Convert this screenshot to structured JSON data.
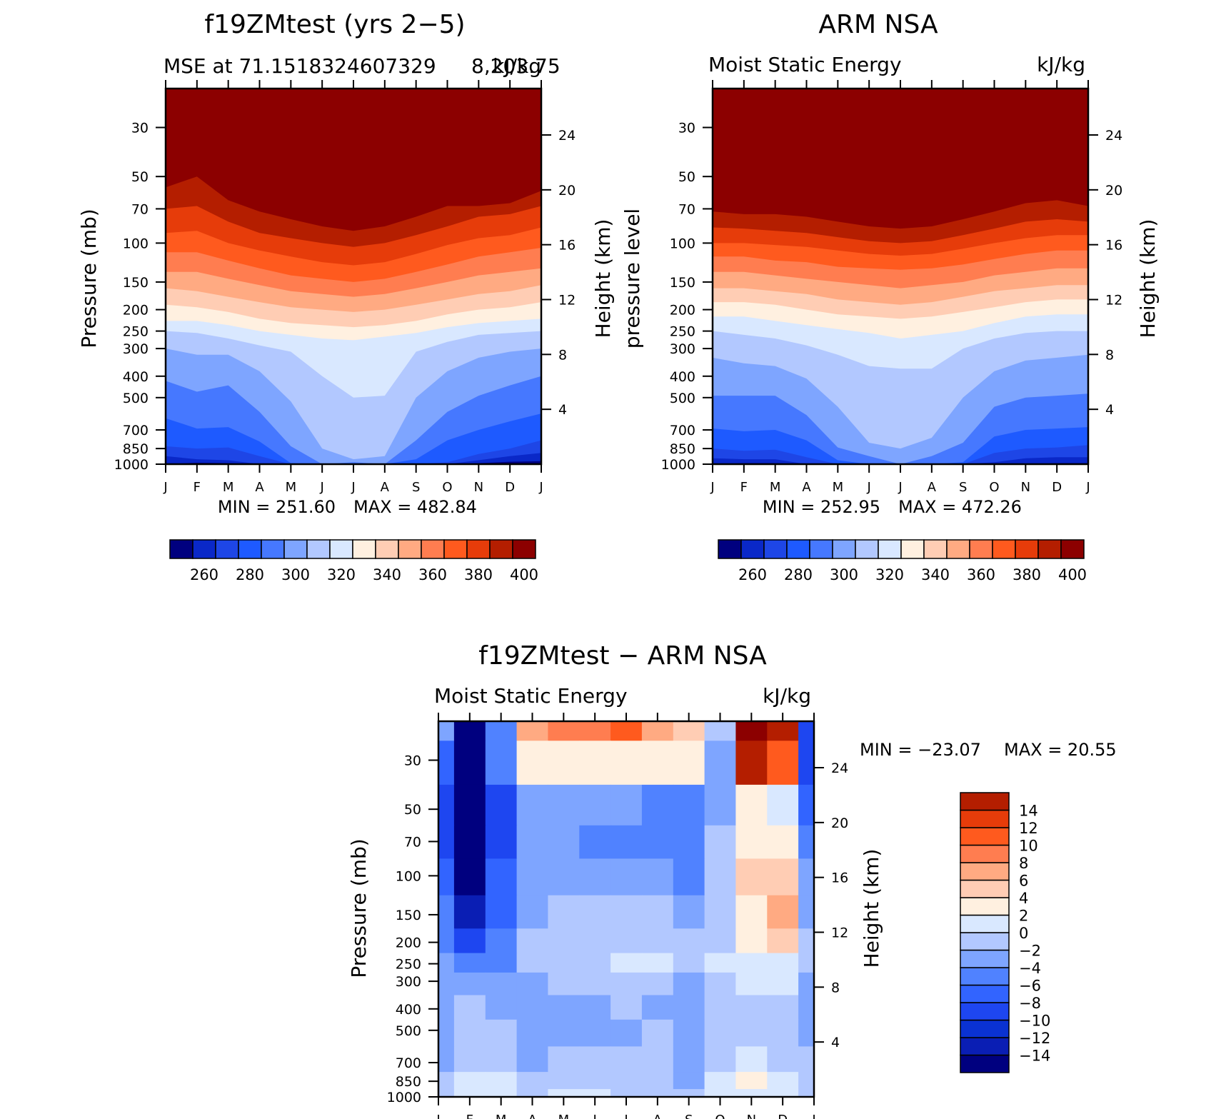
{
  "months": [
    "J",
    "F",
    "M",
    "A",
    "M",
    "J",
    "J",
    "A",
    "S",
    "O",
    "N",
    "D",
    "J"
  ],
  "pressure_levels": [
    30,
    50,
    70,
    100,
    150,
    200,
    250,
    300,
    400,
    500,
    700,
    850,
    1000
  ],
  "height_ticks": [
    4,
    8,
    12,
    16,
    20,
    24
  ],
  "colors": {
    "abs_palette": [
      "#00007f",
      "#0a28c8",
      "#1e46e6",
      "#1e5aff",
      "#4678ff",
      "#7ea5ff",
      "#b2c8ff",
      "#d9e8ff",
      "#fff0e0",
      "#ffcdb4",
      "#ffaa82",
      "#ff7d50",
      "#ff5a1e",
      "#e63c0a",
      "#b41e00",
      "#8c0000"
    ],
    "diff_palette": [
      "#00007f",
      "#0a1eb4",
      "#0a32d2",
      "#1e46f0",
      "#3264ff",
      "#5082ff",
      "#7ea5ff",
      "#b2c8ff",
      "#d9e8ff",
      "#fff0e0",
      "#ffcdb4",
      "#ffaa82",
      "#ff7d50",
      "#ff5a1e",
      "#e63c0a",
      "#b41e00",
      "#8c0000"
    ]
  },
  "chart_data": [
    {
      "type": "heatmap",
      "panel": "model",
      "title": "f19ZMtest (yrs 2−5)",
      "subtitle_left": "MSE at 71.1518324607329",
      "subtitle_right": "kJ/kg",
      "subtitle_right_tail": "8,203.75",
      "xlabel": "",
      "ylabel": "Pressure (mb)",
      "ylabel_right": "Height (km)",
      "x": [
        "J",
        "F",
        "M",
        "A",
        "M",
        "J",
        "J",
        "A",
        "S",
        "O",
        "N",
        "D",
        "J"
      ],
      "y_log_scale": true,
      "ylim": [
        1000,
        20
      ],
      "min_label": "MIN = 251.60",
      "max_label": "MAX = 482.84",
      "colorbar_labels": [
        "260",
        "280",
        "300",
        "320",
        "340",
        "360",
        "380",
        "400"
      ],
      "contour_levels": [
        255,
        260,
        265,
        270,
        275,
        280,
        290,
        300,
        310,
        320,
        330,
        340,
        350,
        360,
        370,
        380,
        390,
        400
      ],
      "boundary_pressures": {
        "260": [
          1000,
          985,
          990,
          1000,
          1000,
          1000,
          1000,
          1000,
          1000,
          1000,
          990,
          975,
          970
        ],
        "270": [
          920,
          950,
          960,
          1000,
          1000,
          1000,
          1000,
          1000,
          1000,
          1000,
          960,
          920,
          890
        ],
        "280": [
          830,
          850,
          840,
          920,
          1000,
          1000,
          1000,
          1000,
          1000,
          980,
          900,
          850,
          780
        ],
        "290": [
          620,
          690,
          680,
          790,
          990,
          1000,
          1000,
          1000,
          950,
          780,
          700,
          640,
          590
        ],
        "300": [
          420,
          470,
          440,
          580,
          830,
          1000,
          980,
          1000,
          780,
          580,
          490,
          440,
          400
        ],
        "310": [
          300,
          320,
          320,
          380,
          520,
          850,
          950,
          920,
          500,
          380,
          330,
          310,
          300
        ],
        "320": [
          250,
          255,
          270,
          290,
          310,
          400,
          500,
          490,
          310,
          280,
          260,
          255,
          250
        ],
        "330": [
          225,
          225,
          235,
          250,
          260,
          270,
          275,
          265,
          255,
          240,
          230,
          225,
          220
        ],
        "340": [
          190,
          195,
          205,
          220,
          230,
          235,
          240,
          235,
          225,
          210,
          200,
          195,
          185
        ],
        "350": [
          160,
          165,
          175,
          185,
          195,
          200,
          205,
          200,
          190,
          180,
          170,
          165,
          155
        ],
        "360": [
          135,
          135,
          145,
          155,
          165,
          170,
          175,
          170,
          160,
          150,
          140,
          135,
          130
        ],
        "370": [
          110,
          110,
          120,
          130,
          140,
          145,
          150,
          145,
          135,
          125,
          115,
          110,
          105
        ],
        "380": [
          90,
          88,
          100,
          108,
          115,
          122,
          126,
          122,
          112,
          102,
          95,
          92,
          85
        ],
        "390": [
          70,
          68,
          80,
          90,
          95,
          100,
          104,
          100,
          92,
          84,
          76,
          74,
          68
        ],
        "400": [
          56,
          50,
          64,
          72,
          78,
          84,
          88,
          84,
          76,
          68,
          68,
          66,
          58
        ]
      }
    },
    {
      "type": "heatmap",
      "panel": "obs",
      "title": "ARM NSA",
      "subtitle_left": "Moist Static Energy",
      "subtitle_right": "kJ/kg",
      "xlabel": "",
      "ylabel": "pressure level",
      "ylabel_right": "Height (km)",
      "x": [
        "J",
        "F",
        "M",
        "A",
        "M",
        "J",
        "J",
        "A",
        "S",
        "O",
        "N",
        "D",
        "J"
      ],
      "y_log_scale": true,
      "ylim": [
        1000,
        20
      ],
      "min_label": "MIN = 252.95",
      "max_label": "MAX = 472.26",
      "colorbar_labels": [
        "260",
        "280",
        "300",
        "320",
        "340",
        "360",
        "380",
        "400"
      ],
      "contour_levels": [
        255,
        260,
        265,
        270,
        275,
        280,
        290,
        300,
        310,
        320,
        330,
        340,
        350,
        360,
        370,
        380,
        390,
        400
      ],
      "boundary_pressures": {
        "260": [
          1000,
          990,
          990,
          1000,
          1000,
          1000,
          1000,
          1000,
          1000,
          1000,
          1000,
          990,
          990
        ],
        "270": [
          940,
          950,
          950,
          1000,
          1000,
          1000,
          1000,
          1000,
          1000,
          980,
          940,
          930,
          930
        ],
        "280": [
          850,
          870,
          860,
          930,
          1000,
          1000,
          1000,
          1000,
          1000,
          890,
          850,
          840,
          820
        ],
        "290": [
          690,
          710,
          700,
          780,
          960,
          1000,
          1000,
          1000,
          980,
          750,
          700,
          690,
          680
        ],
        "300": [
          490,
          490,
          490,
          600,
          840,
          920,
          1000,
          920,
          800,
          550,
          500,
          490,
          480
        ],
        "310": [
          330,
          350,
          360,
          410,
          550,
          800,
          850,
          760,
          500,
          380,
          340,
          330,
          320
        ],
        "320": [
          250,
          260,
          270,
          290,
          320,
          360,
          370,
          370,
          300,
          270,
          255,
          250,
          250
        ],
        "330": [
          215,
          215,
          225,
          235,
          245,
          255,
          270,
          260,
          250,
          230,
          215,
          210,
          210
        ],
        "340": [
          185,
          185,
          190,
          200,
          210,
          215,
          220,
          215,
          205,
          195,
          185,
          180,
          180
        ],
        "350": [
          160,
          160,
          165,
          170,
          180,
          185,
          190,
          185,
          175,
          165,
          160,
          155,
          155
        ],
        "360": [
          135,
          135,
          140,
          145,
          150,
          155,
          160,
          155,
          150,
          140,
          135,
          130,
          130
        ],
        "370": [
          115,
          115,
          120,
          122,
          128,
          130,
          132,
          130,
          125,
          118,
          112,
          108,
          108
        ],
        "380": [
          100,
          100,
          102,
          104,
          108,
          112,
          114,
          112,
          106,
          100,
          95,
          92,
          92
        ],
        "390": [
          85,
          86,
          88,
          90,
          94,
          98,
          100,
          98,
          92,
          86,
          80,
          78,
          80
        ],
        "400": [
          72,
          74,
          74,
          76,
          80,
          84,
          86,
          84,
          78,
          72,
          66,
          64,
          68
        ]
      }
    },
    {
      "type": "heatmap",
      "panel": "difference",
      "title": "f19ZMtest − ARM NSA",
      "subtitle_left": "Moist Static Energy",
      "subtitle_right": "kJ/kg",
      "xlabel": "",
      "ylabel": "Pressure (mb)",
      "ylabel_right": "Height (km)",
      "x": [
        "J",
        "F",
        "M",
        "A",
        "M",
        "J",
        "J",
        "A",
        "S",
        "O",
        "N",
        "D",
        "J"
      ],
      "y_log_scale": true,
      "ylim": [
        1000,
        20
      ],
      "min_label": "MIN = −23.07",
      "max_label": "MAX =   20.55",
      "colorbar_labels": [
        "−14",
        "−12",
        "−10",
        "−8",
        "−6",
        "−4",
        "−2",
        "0",
        "2",
        "4",
        "6",
        "8",
        "10",
        "12",
        "14"
      ],
      "contour_levels": [
        -16,
        -14,
        -12,
        -10,
        -8,
        -6,
        -4,
        -2,
        0,
        2,
        4,
        6,
        8,
        10,
        12,
        14,
        16
      ],
      "value_grid_pressures": [
        20,
        30,
        50,
        70,
        100,
        150,
        200,
        250,
        300,
        400,
        500,
        700,
        850,
        1000
      ],
      "value_grid": [
        [
          -4,
          -20,
          -6,
          6,
          8,
          8,
          10,
          6,
          4,
          -2,
          18,
          14,
          -10
        ],
        [
          -8,
          -20,
          -6,
          3,
          2,
          2,
          3,
          2,
          2,
          -3,
          14,
          10,
          -10
        ],
        [
          -10,
          -22,
          -10,
          -4,
          -4,
          -4,
          -4,
          -5,
          -6,
          -3,
          2,
          1,
          -8
        ],
        [
          -10,
          -22,
          -10,
          -3,
          -4,
          -6,
          -5,
          -6,
          -6,
          -2,
          3,
          2,
          -6
        ],
        [
          -8,
          -18,
          -8,
          -3,
          -3,
          -3,
          -3,
          -4,
          -5,
          -1,
          4,
          5,
          -4
        ],
        [
          -6,
          -13,
          -7,
          -3,
          -2,
          -2,
          -2,
          -2,
          -3,
          -1,
          3,
          6,
          -3
        ],
        [
          -5,
          -10,
          -6,
          -2,
          -2,
          -2,
          -2,
          -2,
          -2,
          -1,
          2,
          4,
          -2
        ],
        [
          -4,
          -6,
          -5,
          -2,
          -1,
          -1,
          0,
          1,
          -1,
          0,
          1,
          1,
          -2
        ],
        [
          -4,
          -4,
          -4,
          -3,
          -2,
          -2,
          -2,
          -2,
          -3,
          -2,
          0,
          0,
          -3
        ],
        [
          -3,
          -2,
          -3,
          -3,
          -3,
          -3,
          -2,
          -3,
          -4,
          -2,
          -1,
          -2,
          -3
        ],
        [
          -3,
          -1,
          -2,
          -3,
          -4,
          -4,
          -3,
          -2,
          -4,
          -2,
          -1,
          -2,
          -3
        ],
        [
          -3,
          -1,
          -2,
          -4,
          -2,
          -2,
          -1,
          -2,
          -4,
          -1,
          1,
          -1,
          -2
        ],
        [
          -2,
          0,
          1,
          -2,
          -1,
          -1,
          -1,
          -2,
          -3,
          0,
          2,
          1,
          -1
        ],
        [
          -1,
          0,
          1,
          -1,
          1,
          1,
          -1,
          -2,
          -2,
          0,
          1,
          0,
          -1
        ]
      ]
    }
  ]
}
